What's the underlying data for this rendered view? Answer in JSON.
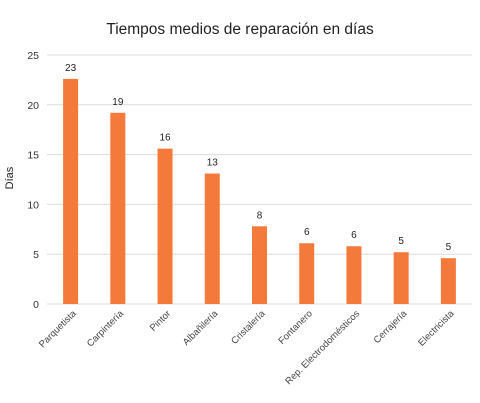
{
  "chart_data": {
    "type": "bar",
    "title": "Tiempos medios de reparación en días",
    "xlabel": "",
    "ylabel": "Días",
    "ylim": [
      0,
      25
    ],
    "yticks": [
      0,
      5,
      10,
      15,
      20,
      25
    ],
    "grid": true,
    "legend": "none",
    "bar_color": "#f47a3c",
    "categories": [
      "Parquetista",
      "Carpintería",
      "Pintor",
      "Albañilería",
      "Cristalería",
      "Fontanero",
      "Rep. Electrodomésticos",
      "Cerrajería",
      "Electricista"
    ],
    "values": [
      22.6,
      19.2,
      15.6,
      13.1,
      7.8,
      6.1,
      5.8,
      5.2,
      4.6
    ],
    "data_labels": [
      "23",
      "19",
      "16",
      "13",
      "8",
      "6",
      "6",
      "5",
      "5"
    ]
  }
}
